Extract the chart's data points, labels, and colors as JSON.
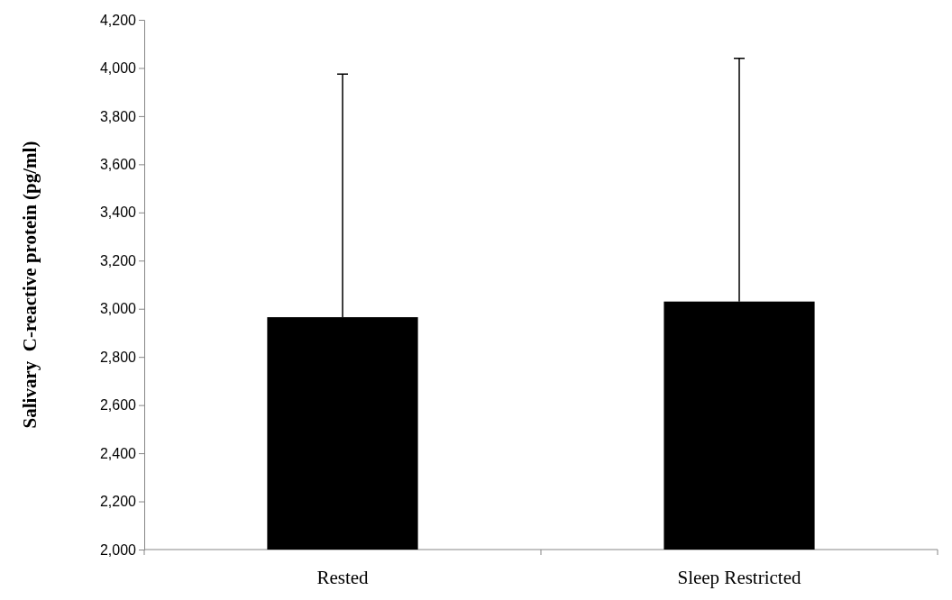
{
  "chart_data": {
    "type": "bar",
    "ylabel": "Salivary  C-reactive protein (pg/ml)",
    "categories": [
      "Rested",
      "Sleep Restricted"
    ],
    "values": [
      2965,
      3030
    ],
    "color": "#000000",
    "errors": [
      [
        2965,
        3975
      ],
      [
        3030,
        4040
      ]
    ],
    "ylim": [
      2000,
      4200
    ],
    "yticks": [
      {
        "value": 2000,
        "label": "2,000"
      },
      {
        "value": 2200,
        "label": "2,200"
      },
      {
        "value": 2400,
        "label": "2,400"
      },
      {
        "value": 2600,
        "label": "2,600"
      },
      {
        "value": 2800,
        "label": "2,800"
      },
      {
        "value": 3000,
        "label": "3,000"
      },
      {
        "value": 3200,
        "label": "3,200"
      },
      {
        "value": 3400,
        "label": "3,400"
      },
      {
        "value": 3600,
        "label": "3,600"
      },
      {
        "value": 3800,
        "label": "3,800"
      },
      {
        "value": 4000,
        "label": "4,000"
      },
      {
        "value": 4200,
        "label": "4,200"
      }
    ],
    "grid": false,
    "legend": false
  }
}
